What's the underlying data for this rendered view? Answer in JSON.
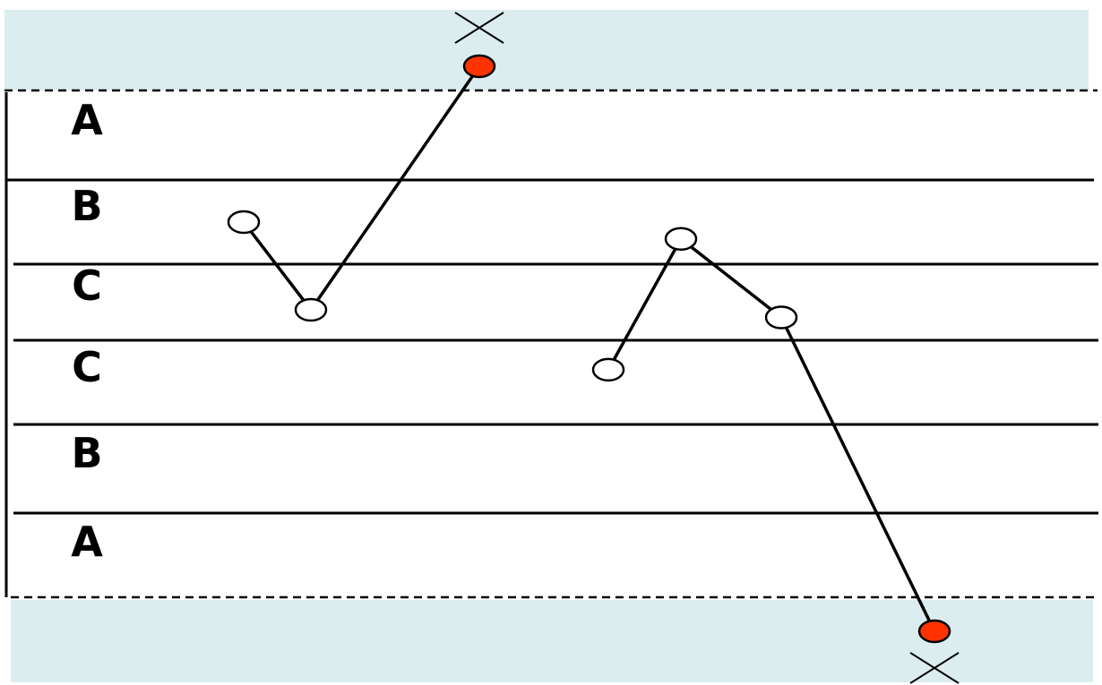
{
  "colors": {
    "out_of_control_band": "#dcedef",
    "line": "#000000",
    "out_of_control_point": "#ff3300",
    "in_control_point": "#ffffff"
  },
  "zones": [
    {
      "label": "A"
    },
    {
      "label": "B"
    },
    {
      "label": "C"
    },
    {
      "label": "C"
    },
    {
      "label": "B"
    },
    {
      "label": "A"
    }
  ],
  "series": [
    {
      "points": [
        {
          "zone_level": 1.5,
          "status": "in-control"
        },
        {
          "zone_level": 0.4,
          "status": "in-control"
        },
        {
          "zone_level": 3.3,
          "status": "out-of-control",
          "marker": "cross"
        }
      ]
    },
    {
      "points": [
        {
          "zone_level": -0.35,
          "status": "in-control"
        },
        {
          "zone_level": 1.3,
          "status": "in-control"
        },
        {
          "zone_level": 0.3,
          "status": "in-control"
        },
        {
          "zone_level": -3.4,
          "status": "out-of-control",
          "marker": "cross"
        }
      ]
    }
  ],
  "icons": {
    "violation_marker": "cross-icon"
  }
}
